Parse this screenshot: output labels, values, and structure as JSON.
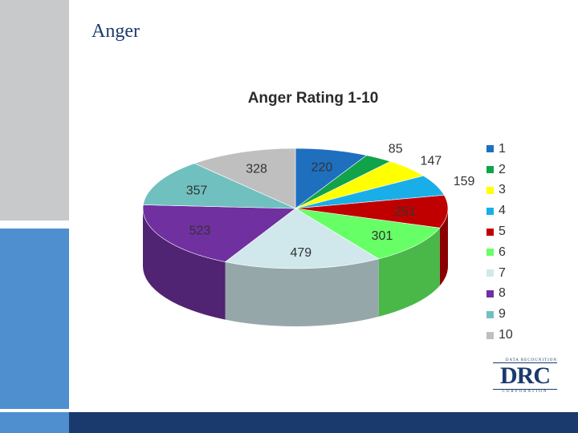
{
  "slide": {
    "title": "Anger"
  },
  "logo": {
    "top": "DATA RECOGNITION",
    "main": "DRC",
    "bottom": "CORPORATION"
  },
  "chart_data": {
    "type": "pie",
    "title": "Anger Rating 1-10",
    "categories": [
      "1",
      "2",
      "3",
      "4",
      "5",
      "6",
      "7",
      "8",
      "9",
      "10"
    ],
    "values": [
      220,
      85,
      147,
      159,
      251,
      301,
      479,
      523,
      357,
      328
    ],
    "colors": [
      "#1f6fbf",
      "#11a34a",
      "#ffff00",
      "#1aaee8",
      "#c00000",
      "#66ff66",
      "#d0e8ec",
      "#7030a0",
      "#70c0c0",
      "#bfbfbf"
    ],
    "legend_position": "right"
  }
}
